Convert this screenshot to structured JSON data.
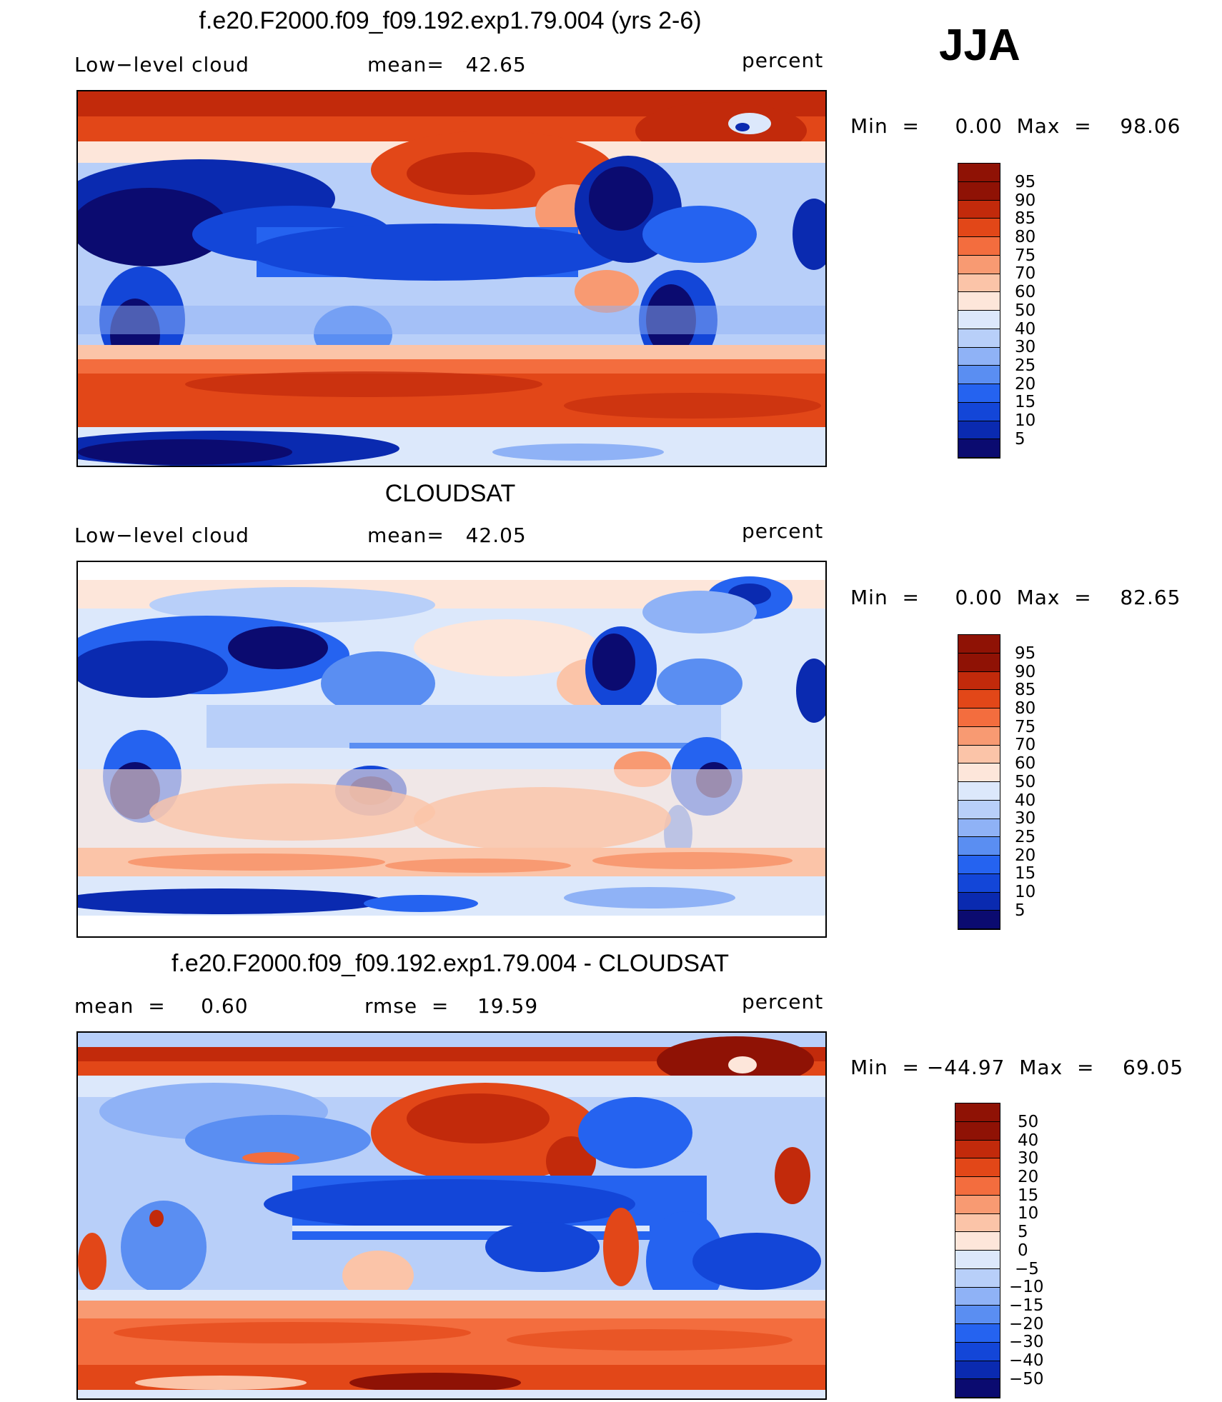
{
  "season": "JJA",
  "panels": [
    {
      "title": "f.e20.F2000.f09_f09.192.exp1.79.004 (yrs 2-6)",
      "left_label": "Low−level cloud",
      "center_label": "mean=   42.65",
      "right_label": "percent",
      "minmax": "Min  =     0.00  Max  =    98.06",
      "colorbar_labels": [
        "95",
        "90",
        "85",
        "80",
        "75",
        "70",
        "60",
        "50",
        "40",
        "30",
        "25",
        "20",
        "15",
        "10",
        "5"
      ]
    },
    {
      "title": "CLOUDSAT",
      "left_label": "Low−level cloud",
      "center_label": "mean=   42.05",
      "right_label": "percent",
      "minmax": "Min  =     0.00  Max  =    82.65",
      "colorbar_labels": [
        "95",
        "90",
        "85",
        "80",
        "75",
        "70",
        "60",
        "50",
        "40",
        "30",
        "25",
        "20",
        "15",
        "10",
        "5"
      ]
    },
    {
      "title": "f.e20.F2000.f09_f09.192.exp1.79.004 - CLOUDSAT",
      "left_label": "mean  =     0.60",
      "center_label": "rmse  =    19.59",
      "right_label": "percent",
      "minmax": "Min  = −44.97  Max  =    69.05",
      "colorbar_labels": [
        "50",
        "40",
        "30",
        "20",
        "15",
        "10",
        "5",
        "0",
        "−5",
        "−10",
        "−15",
        "−20",
        "−30",
        "−40",
        "−50"
      ]
    }
  ],
  "colors": {
    "abs_scale": [
      "#0b0b70",
      "#0a2ab0",
      "#1346d8",
      "#2563f0",
      "#5a8ef2",
      "#8fb2f6",
      "#b8cff9",
      "#dce8fb",
      "#fde6da",
      "#fbc4a8",
      "#f89a72",
      "#f36d3e",
      "#e24718",
      "#c22a0b",
      "#8f1205"
    ],
    "diff_scale": [
      "#0b0b70",
      "#0a2ab0",
      "#1346d8",
      "#2563f0",
      "#5a8ef2",
      "#8fb2f6",
      "#b8cff9",
      "#dce8fb",
      "#fde6da",
      "#fbc4a8",
      "#f89a72",
      "#f36d3e",
      "#e24718",
      "#c22a0b",
      "#8f1205"
    ]
  },
  "chart_data": [
    {
      "type": "heatmap",
      "title": "f.e20.F2000.f09_f09.192.exp1.79.004 (yrs 2-6)",
      "variable": "Low−level cloud",
      "units": "percent",
      "mean": 42.65,
      "min": 0.0,
      "max": 98.06,
      "contour_levels": [
        5,
        10,
        15,
        20,
        25,
        30,
        40,
        50,
        60,
        70,
        75,
        80,
        85,
        90,
        95
      ]
    },
    {
      "type": "heatmap",
      "title": "CLOUDSAT",
      "variable": "Low−level cloud",
      "units": "percent",
      "mean": 42.05,
      "min": 0.0,
      "max": 82.65,
      "contour_levels": [
        5,
        10,
        15,
        20,
        25,
        30,
        40,
        50,
        60,
        70,
        75,
        80,
        85,
        90,
        95
      ]
    },
    {
      "type": "heatmap",
      "title": "f.e20.F2000.f09_f09.192.exp1.79.004 - CLOUDSAT",
      "units": "percent",
      "mean": 0.6,
      "rmse": 19.59,
      "min": -44.97,
      "max": 69.05,
      "contour_levels": [
        -50,
        -40,
        -30,
        -20,
        -15,
        -10,
        -5,
        0,
        5,
        10,
        15,
        20,
        30,
        40,
        50
      ]
    }
  ]
}
